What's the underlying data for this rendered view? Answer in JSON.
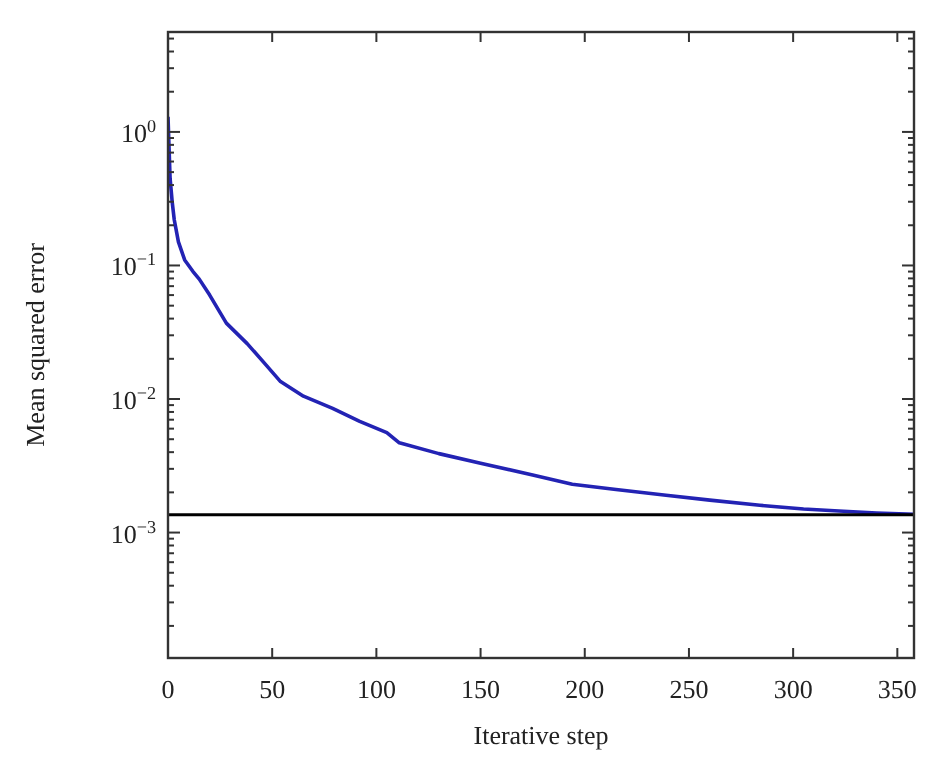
{
  "chart_data": {
    "type": "line",
    "xlabel": "Iterative step",
    "ylabel": "Mean squared error",
    "log": "y",
    "grid": false,
    "xlim": [
      0,
      358
    ],
    "xticks": [
      0,
      50,
      100,
      150,
      200,
      250,
      300,
      350
    ],
    "ylim": [
      0.000115,
      5.6
    ],
    "yticks": [
      {
        "value": 0.0002,
        "label": null
      },
      {
        "value": 0.0003,
        "label": null
      },
      {
        "value": 0.0004,
        "label": null
      },
      {
        "value": 0.0005,
        "label": null
      },
      {
        "value": 0.0006,
        "label": null
      },
      {
        "value": 0.0007,
        "label": null
      },
      {
        "value": 0.0008,
        "label": null
      },
      {
        "value": 0.0009,
        "label": null
      },
      {
        "value": 0.001,
        "label": "10$^{−3}$"
      },
      {
        "value": 0.002,
        "label": null
      },
      {
        "value": 0.003,
        "label": null
      },
      {
        "value": 0.004,
        "label": null
      },
      {
        "value": 0.005,
        "label": null
      },
      {
        "value": 0.006,
        "label": null
      },
      {
        "value": 0.007,
        "label": null
      },
      {
        "value": 0.008,
        "label": null
      },
      {
        "value": 0.009,
        "label": null
      },
      {
        "value": 0.01,
        "label": "10$^{−2}$"
      },
      {
        "value": 0.02,
        "label": null
      },
      {
        "value": 0.03,
        "label": null
      },
      {
        "value": 0.04,
        "label": null
      },
      {
        "value": 0.05,
        "label": null
      },
      {
        "value": 0.06,
        "label": null
      },
      {
        "value": 0.07,
        "label": null
      },
      {
        "value": 0.08,
        "label": null
      },
      {
        "value": 0.09,
        "label": null
      },
      {
        "value": 0.1,
        "label": "10$^{−1}$"
      },
      {
        "value": 0.2,
        "label": null
      },
      {
        "value": 0.3,
        "label": null
      },
      {
        "value": 0.4,
        "label": null
      },
      {
        "value": 0.5,
        "label": null
      },
      {
        "value": 0.6,
        "label": null
      },
      {
        "value": 0.7,
        "label": null
      },
      {
        "value": 0.8,
        "label": null
      },
      {
        "value": 0.9,
        "label": null
      },
      {
        "value": 1,
        "label": "10$^{0}$"
      },
      {
        "value": 2,
        "label": null
      },
      {
        "value": 3,
        "label": null
      },
      {
        "value": 4,
        "label": null
      },
      {
        "value": 5,
        "label": null
      }
    ],
    "series": [
      {
        "color": "#2323b4",
        "x": [
          0,
          1,
          2,
          3,
          5,
          8,
          12,
          15,
          20,
          28,
          38,
          47,
          54,
          65,
          79,
          92,
          105,
          111,
          130,
          150,
          175,
          194,
          215,
          239,
          260,
          284,
          305,
          322,
          340,
          358
        ],
        "values": [
          1.3,
          0.45,
          0.3,
          0.22,
          0.15,
          0.11,
          0.09,
          0.079,
          0.06,
          0.037,
          0.026,
          0.018,
          0.0135,
          0.0105,
          0.0085,
          0.0068,
          0.0056,
          0.0047,
          0.0039,
          0.0033,
          0.0027,
          0.0023,
          0.0021,
          0.0019,
          0.00175,
          0.0016,
          0.0015,
          0.00145,
          0.0014,
          0.00137
        ]
      }
    ],
    "ref_lines": [
      {
        "axis": "y",
        "value": 0.00136,
        "color": "#000000"
      }
    ]
  }
}
